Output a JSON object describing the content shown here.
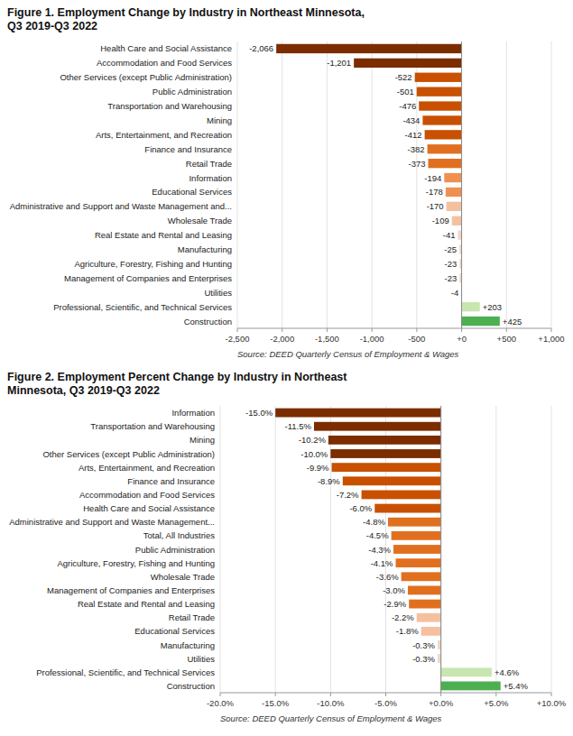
{
  "chart_data": [
    {
      "type": "bar",
      "orientation": "horizontal",
      "title": "Figure 1. Employment Change by Industry in Northeast Minnesota,\nQ3 2019-Q3 2022",
      "annotations": [
        "Source: DEED Quarterly Census of Employment & Wages"
      ],
      "categories": [
        "Health Care and Social Assistance",
        "Accommodation and Food Services",
        "Other Services (except Public Administration)",
        "Public Administration",
        "Transportation and Warehousing",
        "Mining",
        "Arts, Entertainment, and Recreation",
        "Finance and Insurance",
        "Retail Trade",
        "Information",
        "Educational Services",
        "Administrative and Support and Waste Management and...",
        "Wholesale Trade",
        "Real Estate and Rental and Leasing",
        "Manufacturing",
        "Agriculture, Forestry, Fishing and Hunting",
        "Management of Companies and Enterprises",
        "Utilities",
        "Professional, Scientific, and Technical Services",
        "Construction"
      ],
      "values": [
        -2066,
        -1201,
        -522,
        -501,
        -476,
        -434,
        -412,
        -382,
        -373,
        -194,
        -178,
        -170,
        -109,
        -41,
        -25,
        -23,
        -23,
        -4,
        203,
        425
      ],
      "value_labels": [
        "-2,066",
        "-1,201",
        "-522",
        "-501",
        "-476",
        "-434",
        "-412",
        "-382",
        "-373",
        "-194",
        "-178",
        "-170",
        "-109",
        "-41",
        "-25",
        "-23",
        "-23",
        "-4",
        "+203",
        "+425"
      ],
      "colors": [
        "#7B2D00",
        "#7B2D00",
        "#C85000",
        "#C85000",
        "#C85000",
        "#C85000",
        "#C85000",
        "#E07020",
        "#E07020",
        "#F09050",
        "#F09050",
        "#F5C0A0",
        "#F5C0A0",
        "#F0D8C8",
        "#F0D8C8",
        "#F0D8C8",
        "#F0D8C8",
        "#F0D8C8",
        "#C8E6B0",
        "#4CAF50"
      ],
      "xlim": [
        -2500,
        1000
      ],
      "xticks": [
        {
          "value": -2500,
          "label": "-2,500"
        },
        {
          "value": -2000,
          "label": "-2,000"
        },
        {
          "value": -1500,
          "label": "-1,500"
        },
        {
          "value": -1000,
          "label": "-1,000"
        },
        -500,
        {
          "value": 0,
          "label": "+0"
        },
        {
          "value": 500,
          "label": "+500"
        },
        {
          "value": 1000,
          "label": "+1,000"
        }
      ],
      "grid": true,
      "data_labels": true
    },
    {
      "type": "bar",
      "orientation": "horizontal",
      "title": "Figure 2. Employment Percent Change by Industry in Northeast\nMinnesota, Q3 2019-Q3 2022",
      "annotations": [
        "Source: DEED Quarterly Census of Employment & Wages"
      ],
      "categories": [
        "Information",
        "Transportation and Warehousing",
        "Mining",
        "Other Services (except Public Administration)",
        "Arts, Entertainment, and Recreation",
        "Finance and Insurance",
        "Accommodation and Food Services",
        "Health Care and Social Assistance",
        "Administrative and Support and Waste Management...",
        "Total, All Industries",
        "Public Administration",
        "Agriculture, Forestry, Fishing and Hunting",
        "Wholesale Trade",
        "Management of Companies and Enterprises",
        "Real Estate and Rental and Leasing",
        "Retail Trade",
        "Educational Services",
        "Manufacturing",
        "Utilities",
        "Professional, Scientific, and Technical Services",
        "Construction"
      ],
      "values": [
        -15.0,
        -11.5,
        -10.2,
        -10.0,
        -9.9,
        -8.9,
        -7.2,
        -6.0,
        -4.8,
        -4.5,
        -4.3,
        -4.1,
        -3.6,
        -3.0,
        -2.9,
        -2.2,
        -1.8,
        -0.3,
        -0.3,
        4.6,
        5.4
      ],
      "value_labels": [
        "-15.0%",
        "-11.5%",
        "-10.2%",
        "-10.0%",
        "-9.9%",
        "-8.9%",
        "-7.2%",
        "-6.0%",
        "-4.8%",
        "-4.5%",
        "-4.3%",
        "-4.1%",
        "-3.6%",
        "-3.0%",
        "-2.9%",
        "-2.2%",
        "-1.8%",
        "-0.3%",
        "-0.3%",
        "+4.6%",
        "+5.4%"
      ],
      "colors": [
        "#7B2D00",
        "#7B2D00",
        "#7B2D00",
        "#7B2D00",
        "#C85000",
        "#C85000",
        "#C85000",
        "#C85000",
        "#E07020",
        "#E07020",
        "#E07020",
        "#E07020",
        "#E07020",
        "#E07020",
        "#E07020",
        "#F5C0A0",
        "#F5C0A0",
        "#F0D8C8",
        "#F0D8C8",
        "#C8E6B0",
        "#4CAF50"
      ],
      "xlim": [
        -20.0,
        10.0
      ],
      "xticks": [
        {
          "value": -20.0,
          "label": "-20.0%"
        },
        {
          "value": -15.0,
          "label": "-15.0%"
        },
        {
          "value": -10.0,
          "label": "-10.0%"
        },
        {
          "value": -5.0,
          "label": "-5.0%"
        },
        {
          "value": 0.0,
          "label": "+0.0%"
        },
        {
          "value": 5.0,
          "label": "+5.0%"
        },
        {
          "value": 10.0,
          "label": "+10.0%"
        }
      ],
      "grid": true,
      "data_labels": true
    }
  ]
}
